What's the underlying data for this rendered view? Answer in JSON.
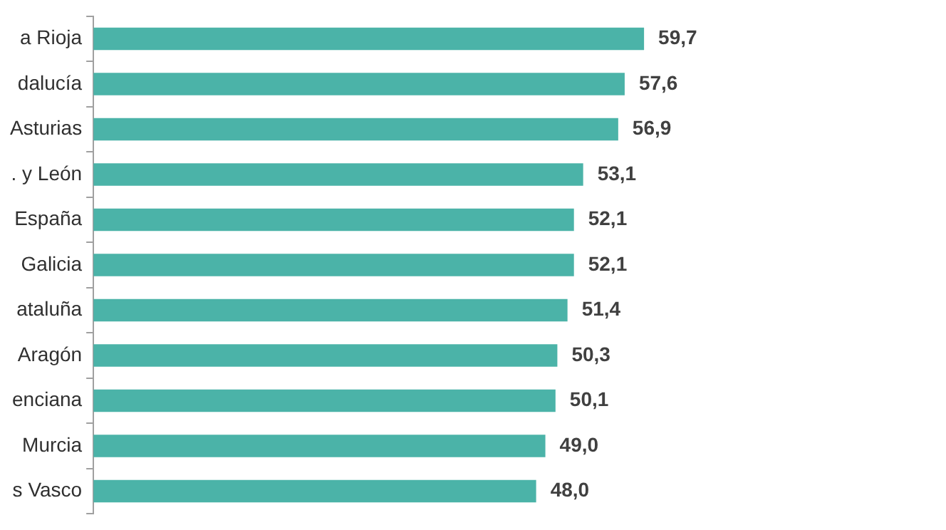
{
  "chart_data": {
    "type": "bar",
    "orientation": "horizontal",
    "categories": [
      "a Rioja",
      "dalucía",
      "Asturias",
      ". y León",
      "España",
      "Galicia",
      "ataluña",
      "Aragón",
      "enciana",
      "Murcia",
      "s Vasco"
    ],
    "values": [
      59.7,
      57.6,
      56.9,
      53.1,
      52.1,
      52.1,
      51.4,
      50.3,
      50.1,
      49.0,
      48.0
    ],
    "value_labels": [
      "59,7",
      "57,6",
      "56,9",
      "53,1",
      "52,1",
      "52,1",
      "51,4",
      "50,3",
      "50,1",
      "49,0",
      "48,0"
    ],
    "color": "#4bb3a8"
  }
}
